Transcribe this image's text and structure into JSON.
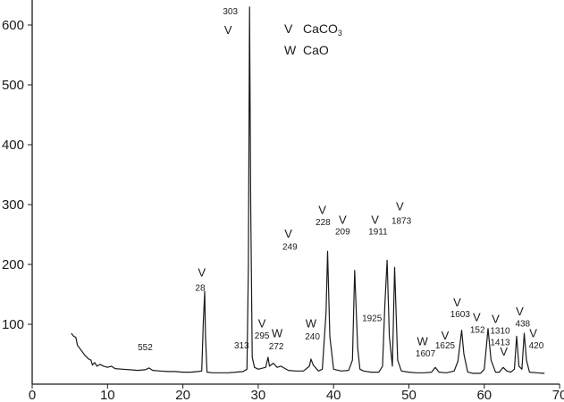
{
  "chart_data": {
    "type": "line",
    "xlim": [
      0,
      70
    ],
    "ylim": [
      0,
      630
    ],
    "x_ticks": [
      "0",
      "10",
      "20",
      "30",
      "40",
      "50",
      "60",
      "70"
    ],
    "y_ticks": [
      "100",
      "200",
      "300",
      "400",
      "500",
      "600"
    ],
    "legend": [
      {
        "marker": "V",
        "label": "CaCO",
        "sub": "3"
      },
      {
        "marker": "W",
        "label": "CaO",
        "sub": ""
      }
    ],
    "legend_position": "top-center",
    "grid": false,
    "series": [
      {
        "points": [
          [
            5.2,
            85
          ],
          [
            5.5,
            80
          ],
          [
            5.8,
            78
          ],
          [
            6.0,
            65
          ],
          [
            6.3,
            60
          ],
          [
            6.6,
            55
          ],
          [
            7.0,
            48
          ],
          [
            7.5,
            42
          ],
          [
            7.8,
            40
          ],
          [
            8.0,
            32
          ],
          [
            8.3,
            36
          ],
          [
            8.6,
            30
          ],
          [
            9.0,
            33
          ],
          [
            9.5,
            30
          ],
          [
            10.0,
            28
          ],
          [
            10.5,
            30
          ],
          [
            11.0,
            26
          ],
          [
            12.0,
            25
          ],
          [
            13.0,
            24
          ],
          [
            14.0,
            23
          ],
          [
            15.0,
            24
          ],
          [
            15.5,
            27
          ],
          [
            16.0,
            23
          ],
          [
            17.0,
            22
          ],
          [
            18.0,
            21
          ],
          [
            19.0,
            21
          ],
          [
            20.0,
            20
          ],
          [
            21.0,
            20
          ],
          [
            22.0,
            21
          ],
          [
            22.5,
            22
          ],
          [
            22.7,
            100
          ],
          [
            22.9,
            155
          ],
          [
            23.0,
            80
          ],
          [
            23.2,
            20
          ],
          [
            24.0,
            19
          ],
          [
            25.0,
            19
          ],
          [
            26.0,
            19
          ],
          [
            27.0,
            20
          ],
          [
            28.0,
            21
          ],
          [
            28.5,
            25
          ],
          [
            28.7,
            200
          ],
          [
            28.85,
            630
          ],
          [
            29.0,
            300
          ],
          [
            29.2,
            45
          ],
          [
            29.5,
            28
          ],
          [
            30.0,
            25
          ],
          [
            31.0,
            28
          ],
          [
            31.3,
            45
          ],
          [
            31.5,
            30
          ],
          [
            32.0,
            35
          ],
          [
            32.5,
            28
          ],
          [
            33.0,
            30
          ],
          [
            34.0,
            23
          ],
          [
            35.0,
            22
          ],
          [
            36.0,
            22
          ],
          [
            36.8,
            30
          ],
          [
            37.0,
            42
          ],
          [
            37.3,
            32
          ],
          [
            38.0,
            22
          ],
          [
            38.5,
            25
          ],
          [
            39.0,
            120
          ],
          [
            39.2,
            222
          ],
          [
            39.5,
            80
          ],
          [
            40.0,
            25
          ],
          [
            41.0,
            22
          ],
          [
            42.0,
            23
          ],
          [
            42.5,
            40
          ],
          [
            42.8,
            190
          ],
          [
            43.2,
            60
          ],
          [
            43.5,
            25
          ],
          [
            44.0,
            22
          ],
          [
            45.0,
            20
          ],
          [
            46.0,
            20
          ],
          [
            46.5,
            30
          ],
          [
            46.8,
            130
          ],
          [
            47.1,
            207
          ],
          [
            47.4,
            80
          ],
          [
            47.8,
            30
          ],
          [
            48.1,
            195
          ],
          [
            48.5,
            40
          ],
          [
            49.0,
            22
          ],
          [
            50.0,
            20
          ],
          [
            51.0,
            19
          ],
          [
            52.0,
            19
          ],
          [
            53.0,
            20
          ],
          [
            53.5,
            28
          ],
          [
            54.0,
            20
          ],
          [
            55.0,
            19
          ],
          [
            56.0,
            22
          ],
          [
            56.5,
            38
          ],
          [
            57.0,
            90
          ],
          [
            57.3,
            50
          ],
          [
            57.8,
            20
          ],
          [
            58.5,
            18
          ],
          [
            59.5,
            18
          ],
          [
            60.0,
            25
          ],
          [
            60.5,
            93
          ],
          [
            60.9,
            40
          ],
          [
            61.5,
            20
          ],
          [
            62.0,
            20
          ],
          [
            62.5,
            28
          ],
          [
            63.0,
            22
          ],
          [
            63.5,
            20
          ],
          [
            64.0,
            25
          ],
          [
            64.3,
            80
          ],
          [
            64.6,
            30
          ],
          [
            65.0,
            25
          ],
          [
            65.3,
            85
          ],
          [
            65.6,
            40
          ],
          [
            66.0,
            20
          ],
          [
            67.0,
            19
          ],
          [
            68.0,
            18
          ]
        ]
      }
    ],
    "markers": [
      {
        "symbol": "V",
        "x": 26.0,
        "y": 585
      },
      {
        "symbol": "V",
        "x": 22.5,
        "y": 180
      },
      {
        "symbol": "V",
        "x": 30.5,
        "y": 95
      },
      {
        "symbol": "W",
        "x": 32.5,
        "y": 78
      },
      {
        "symbol": "W",
        "x": 37.0,
        "y": 95
      },
      {
        "symbol": "V",
        "x": 34.0,
        "y": 245
      },
      {
        "symbol": "V",
        "x": 38.5,
        "y": 284
      },
      {
        "symbol": "V",
        "x": 41.2,
        "y": 268
      },
      {
        "symbol": "V",
        "x": 45.5,
        "y": 268
      },
      {
        "symbol": "V",
        "x": 48.8,
        "y": 290
      },
      {
        "symbol": "W",
        "x": 51.8,
        "y": 65
      },
      {
        "symbol": "V",
        "x": 54.8,
        "y": 75
      },
      {
        "symbol": "V",
        "x": 56.4,
        "y": 130
      },
      {
        "symbol": "V",
        "x": 59.0,
        "y": 105
      },
      {
        "symbol": "V",
        "x": 61.5,
        "y": 102
      },
      {
        "symbol": "V",
        "x": 62.6,
        "y": 48
      },
      {
        "symbol": "V",
        "x": 64.7,
        "y": 115
      },
      {
        "symbol": "V",
        "x": 66.5,
        "y": 78
      }
    ],
    "peak_labels": [
      {
        "text": "303",
        "x": 26.3,
        "y": 618
      },
      {
        "text": "28",
        "x": 22.3,
        "y": 156
      },
      {
        "text": "552",
        "x": 15.0,
        "y": 57
      },
      {
        "text": "313",
        "x": 27.8,
        "y": 60
      },
      {
        "text": "295",
        "x": 30.5,
        "y": 76
      },
      {
        "text": "272",
        "x": 32.4,
        "y": 58
      },
      {
        "text": "240",
        "x": 37.2,
        "y": 75
      },
      {
        "text": "249",
        "x": 34.2,
        "y": 225
      },
      {
        "text": "228",
        "x": 38.6,
        "y": 266
      },
      {
        "text": "209",
        "x": 41.2,
        "y": 250
      },
      {
        "text": "1911",
        "x": 45.9,
        "y": 250
      },
      {
        "text": "1873",
        "x": 49.0,
        "y": 268
      },
      {
        "text": "1925",
        "x": 45.1,
        "y": 105
      },
      {
        "text": "1607",
        "x": 52.2,
        "y": 46
      },
      {
        "text": "1625",
        "x": 54.8,
        "y": 60
      },
      {
        "text": "1603",
        "x": 56.8,
        "y": 112
      },
      {
        "text": "152",
        "x": 59.1,
        "y": 86
      },
      {
        "text": "1310",
        "x": 62.1,
        "y": 84
      },
      {
        "text": "1413",
        "x": 62.1,
        "y": 65
      },
      {
        "text": "438",
        "x": 65.1,
        "y": 96
      },
      {
        "text": "420",
        "x": 66.9,
        "y": 60
      }
    ]
  }
}
